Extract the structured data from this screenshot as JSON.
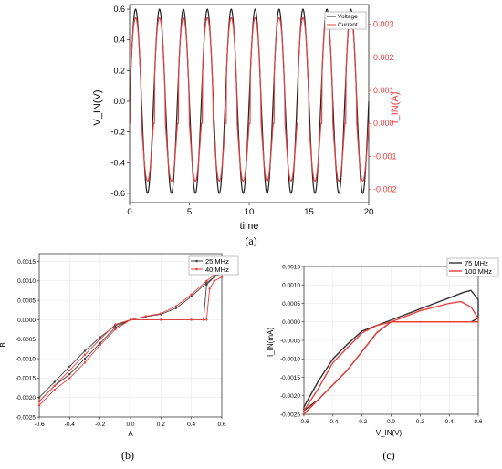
{
  "captions": {
    "a": "(a)",
    "b": "(b)",
    "c": "(c)"
  },
  "chart_data": [
    {
      "type": "line",
      "panel": "a",
      "xlabel": "time",
      "ylabel_left": "V_IN(V)",
      "ylabel_right": "I_IN(A)",
      "xlim": [
        0,
        20
      ],
      "ylim_left": [
        -0.66,
        0.63
      ],
      "ylim_right": [
        -0.0024,
        0.0036
      ],
      "xticks": [
        "0",
        "5",
        "10",
        "15",
        "20"
      ],
      "yticks_left": [
        "0.6",
        "0.4",
        "0.2",
        "0.0",
        "-0.2",
        "-0.4",
        "-0.6"
      ],
      "yticks_right": [
        "0.003",
        "0.002",
        "0.001",
        "0.000",
        "-0.001",
        "-0.002"
      ],
      "period": 2.0,
      "series": [
        {
          "name": "Voltage",
          "color": "#222222",
          "amplitude": 0.6
        },
        {
          "name": "Current",
          "color": "#e8403f",
          "peak": 0.0032,
          "trough": -0.00175,
          "floor": 0.0
        }
      ],
      "legend": "top-right"
    },
    {
      "type": "line",
      "panel": "b",
      "xlabel": "A",
      "ylabel": "B",
      "xlim": [
        -0.6,
        0.6
      ],
      "ylim": [
        -0.0025,
        0.0017
      ],
      "xticks": [
        "-0.6",
        "-0.4",
        "-0.2",
        "0.0",
        "0.2",
        "0.4",
        "0.6"
      ],
      "yticks": [
        "0.0015",
        "0.0010",
        "0.0005",
        "0.0000",
        "-0.0005",
        "-0.0010",
        "-0.0015",
        "-0.0020",
        "-0.0025"
      ],
      "series": [
        {
          "name": "25 MHz",
          "color": "#444444",
          "x": [
            -0.6,
            -0.5,
            -0.4,
            -0.3,
            -0.2,
            -0.1,
            0.0,
            0.1,
            0.2,
            0.3,
            0.4,
            0.5,
            0.55,
            0.6,
            0.6,
            0.55,
            0.5,
            0.48,
            0.4,
            0.2,
            0.0,
            -0.1,
            -0.2,
            -0.3,
            -0.4,
            -0.5,
            -0.6
          ],
          "y": [
            -0.002,
            -0.0016,
            -0.0012,
            -0.0008,
            -0.00045,
            -0.00015,
            0.0,
            8e-05,
            0.00014,
            0.0003,
            0.0006,
            0.00095,
            0.0011,
            0.0013,
            0.0012,
            0.0011,
            0.0009,
            0.0,
            0.0,
            0.0,
            0.0,
            -0.0002,
            -0.0006,
            -0.001,
            -0.0014,
            -0.0017,
            -0.0021
          ]
        },
        {
          "name": "40 MHz",
          "color": "#e8403f",
          "x": [
            -0.6,
            -0.5,
            -0.4,
            -0.3,
            -0.2,
            -0.1,
            0.0,
            0.1,
            0.2,
            0.3,
            0.4,
            0.5,
            0.55,
            0.6,
            0.6,
            0.55,
            0.52,
            0.5,
            0.4,
            0.2,
            0.0,
            -0.1,
            -0.2,
            -0.3,
            -0.4,
            -0.5,
            -0.6
          ],
          "y": [
            -0.0021,
            -0.0017,
            -0.0013,
            -0.0009,
            -0.0005,
            -0.00012,
            0.0,
            9e-05,
            0.00016,
            0.00035,
            0.00065,
            0.001,
            0.00115,
            0.0013,
            0.0011,
            0.001,
            0.0008,
            0.0,
            0.0,
            0.0,
            0.0,
            -0.00025,
            -0.00065,
            -0.0011,
            -0.0015,
            -0.0018,
            -0.0022
          ]
        }
      ],
      "legend": "top-right"
    },
    {
      "type": "line",
      "panel": "c",
      "xlabel": "V_IN(V)",
      "ylabel": "I_IN(mA)",
      "xlim": [
        -0.6,
        0.6
      ],
      "ylim": [
        -0.0025,
        0.0015
      ],
      "xticks": [
        "-0.6",
        "-0.4",
        "-0.2",
        "0.0",
        "0.2",
        "0.4",
        "0.6"
      ],
      "yticks": [
        "0.0015",
        "0.0010",
        "0.0005",
        "0.0000",
        "-0.0005",
        "-0.0010",
        "-0.0015",
        "-0.0020",
        "-0.0025"
      ],
      "series": [
        {
          "name": "75 MHz",
          "color": "#333333",
          "x": [
            -0.6,
            -0.5,
            -0.4,
            -0.3,
            -0.2,
            -0.1,
            0.0,
            0.1,
            0.2,
            0.3,
            0.4,
            0.5,
            0.55,
            0.6,
            0.6,
            0.55,
            0.5,
            0.3,
            0.1,
            0.0,
            -0.1,
            -0.2,
            -0.3,
            -0.4,
            -0.5,
            -0.6
          ],
          "y": [
            -0.0023,
            -0.0016,
            -0.001,
            -0.0006,
            -0.00025,
            -0.0001,
            5e-05,
            0.0002,
            0.00035,
            0.0005,
            0.00065,
            0.0008,
            0.00085,
            0.0006,
            0.0001,
            0.0,
            0.0,
            0.0,
            0.0,
            0.0,
            -0.0003,
            -0.0008,
            -0.0013,
            -0.0017,
            -0.0021,
            -0.0024
          ]
        },
        {
          "name": "100 MHz",
          "color": "#e8403f",
          "x": [
            -0.6,
            -0.5,
            -0.4,
            -0.3,
            -0.2,
            -0.1,
            0.0,
            0.1,
            0.2,
            0.3,
            0.4,
            0.48,
            0.55,
            0.6,
            0.6,
            0.55,
            0.5,
            0.3,
            0.1,
            0.0,
            -0.1,
            -0.2,
            -0.3,
            -0.4,
            -0.5,
            -0.6
          ],
          "y": [
            -0.0024,
            -0.0018,
            -0.0011,
            -0.0007,
            -0.0003,
            -0.0001,
            0.0,
            0.00015,
            0.0003,
            0.0004,
            0.0005,
            0.00055,
            0.0004,
            0.0001,
            0.0,
            0.0,
            0.0,
            0.0,
            0.0,
            0.0,
            -0.0003,
            -0.0008,
            -0.0013,
            -0.0017,
            -0.0021,
            -0.0025
          ]
        }
      ],
      "legend": "top-right"
    }
  ]
}
